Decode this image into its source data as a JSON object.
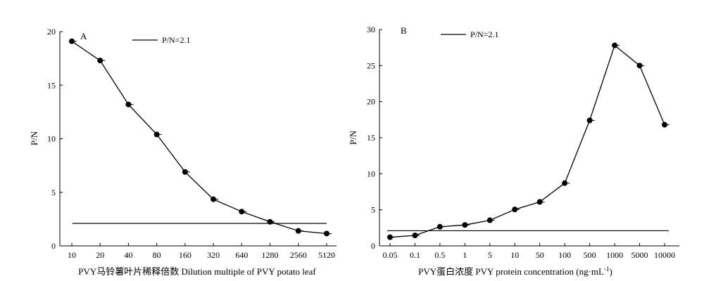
{
  "chart_data": [
    {
      "type": "line",
      "panel_label": "A",
      "categories": [
        "10",
        "20",
        "40",
        "80",
        "160",
        "320",
        "640",
        "1280",
        "2560",
        "5120"
      ],
      "series": [
        {
          "name": "",
          "values": [
            19.1,
            17.3,
            13.2,
            10.4,
            6.9,
            4.35,
            3.2,
            2.25,
            1.4,
            1.15
          ]
        }
      ],
      "reference_line": {
        "name": "P/N=2.1",
        "value": 2.1
      },
      "title": "",
      "xlabel": "PVY马铃薯叶片稀释倍数 Dilution multiple of PVY potato leaf",
      "ylabel": "P/N",
      "ylim": [
        0,
        20
      ],
      "yticks": [
        "0",
        "5",
        "10",
        "15",
        "20"
      ],
      "legend_position": "top-center",
      "grid": false
    },
    {
      "type": "line",
      "panel_label": "B",
      "categories": [
        "0.05",
        "0.1",
        "0.5",
        "1",
        "5",
        "10",
        "50",
        "100",
        "500",
        "1000",
        "5000",
        "10000"
      ],
      "series": [
        {
          "name": "",
          "values": [
            1.2,
            1.45,
            2.65,
            2.9,
            3.55,
            5.05,
            6.1,
            8.7,
            17.4,
            27.8,
            25.0,
            16.8
          ]
        }
      ],
      "reference_line": {
        "name": "P/N=2.1",
        "value": 2.1
      },
      "title": "",
      "xlabel": "PVY蛋白浓度 PVY protein concentration (ng·mL",
      "xlabel_superscript": "-1",
      "xlabel_suffix": ")",
      "ylabel": "P/N",
      "ylim": [
        0,
        30
      ],
      "yticks": [
        "0",
        "5",
        "10",
        "15",
        "20",
        "25",
        "30"
      ],
      "legend_position": "top-left",
      "grid": false
    }
  ]
}
